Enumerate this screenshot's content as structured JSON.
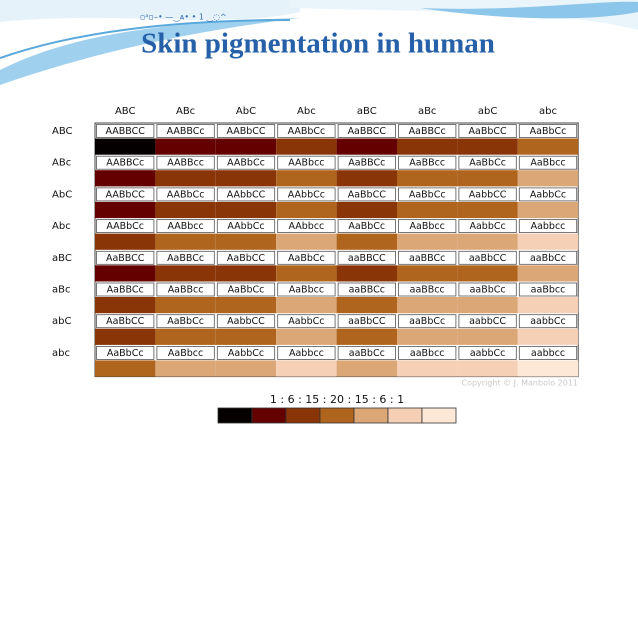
{
  "header": {
    "caption": "▫ᵃ▫–•  —‿ᴀ• • 1  ‿◌^",
    "title": "Skin pigmentation in human"
  },
  "table": {
    "columns": [
      "ABC",
      "ABc",
      "AbC",
      "Abc",
      "aBC",
      "aBc",
      "abC",
      "abc"
    ],
    "rows": [
      {
        "label": "ABC",
        "cells": [
          "AABBCC",
          "AABBCc",
          "AABbCC",
          "AABbCc",
          "AaBBCC",
          "AaBBCc",
          "AaBbCC",
          "AaBbCc"
        ]
      },
      {
        "label": "ABc",
        "cells": [
          "AABBCc",
          "AABBcc",
          "AABbCc",
          "AABbcc",
          "AaBBCc",
          "AaBBcc",
          "AaBbCc",
          "AaBbcc"
        ]
      },
      {
        "label": "AbC",
        "cells": [
          "AABbCC",
          "AABbCc",
          "AAbbCC",
          "AAbbCc",
          "AaBbCC",
          "AaBbCc",
          "AabbCC",
          "AabbCc"
        ]
      },
      {
        "label": "Abc",
        "cells": [
          "AABbCc",
          "AABbcc",
          "AAbbCc",
          "AAbbcc",
          "AaBbCc",
          "AaBbcc",
          "AabbCc",
          "Aabbcc"
        ]
      },
      {
        "label": "aBC",
        "cells": [
          "AaBBCC",
          "AaBBCc",
          "AaBbCC",
          "AaBbCc",
          "aaBBCC",
          "aaBBCc",
          "aaBbCC",
          "aaBbCc"
        ]
      },
      {
        "label": "aBc",
        "cells": [
          "AaBBCc",
          "AaBBcc",
          "AaBbCc",
          "AaBbcc",
          "aaBBCc",
          "aaBBcc",
          "aaBbCc",
          "aaBbcc"
        ]
      },
      {
        "label": "abC",
        "cells": [
          "AaBbCC",
          "AaBbCc",
          "AabbCC",
          "AabbCc",
          "aaBbCC",
          "aaBbCc",
          "aabbCC",
          "aabbCc"
        ]
      },
      {
        "label": "abc",
        "cells": [
          "AaBbCc",
          "AaBbcc",
          "AabbCc",
          "Aabbcc",
          "aaBbCc",
          "aaBbcc",
          "aabbCc",
          "aabbcc"
        ]
      }
    ],
    "copyright": "Copyright © J. Manbolo 2011"
  },
  "legend": {
    "ratio": "1  :  6  :  15  :  20  :  15  :  6  :  1",
    "colors": [
      "#050000",
      "#650000",
      "#8a3508",
      "#b0651e",
      "#dba777",
      "#f6d0b6",
      "#fde8d8"
    ]
  }
}
